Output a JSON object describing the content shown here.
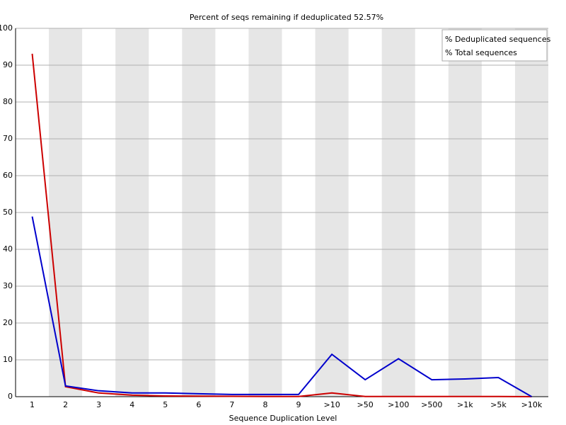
{
  "chart_data": {
    "type": "line",
    "title": "Percent of seqs remaining if deduplicated 52.57%",
    "x_label": "Sequence Duplication Level",
    "categories": [
      "1",
      "2",
      "3",
      "4",
      "5",
      "6",
      "7",
      "8",
      "9",
      ">10",
      ">50",
      ">100",
      ">500",
      ">1k",
      ">5k",
      ">10k"
    ],
    "series": [
      {
        "name": "% Deduplicated sequences",
        "color": "#cc0000",
        "values": [
          93.1,
          2.7,
          1.0,
          0.4,
          0.2,
          0.15,
          0.1,
          0.05,
          0.05,
          1.0,
          0.05,
          0.05,
          0.05,
          0.05,
          0.05,
          0
        ]
      },
      {
        "name": "% Total sequences",
        "color": "#0000cc",
        "values": [
          48.9,
          2.9,
          1.6,
          1.0,
          1.0,
          0.8,
          0.6,
          0.6,
          0.6,
          11.5,
          4.6,
          10.3,
          4.6,
          4.8,
          5.2,
          0
        ]
      }
    ],
    "ylim": [
      0,
      100
    ],
    "yticks": [
      0,
      10,
      20,
      30,
      40,
      50,
      60,
      70,
      80,
      90,
      100
    ],
    "grid": true,
    "legend": "top-right"
  }
}
